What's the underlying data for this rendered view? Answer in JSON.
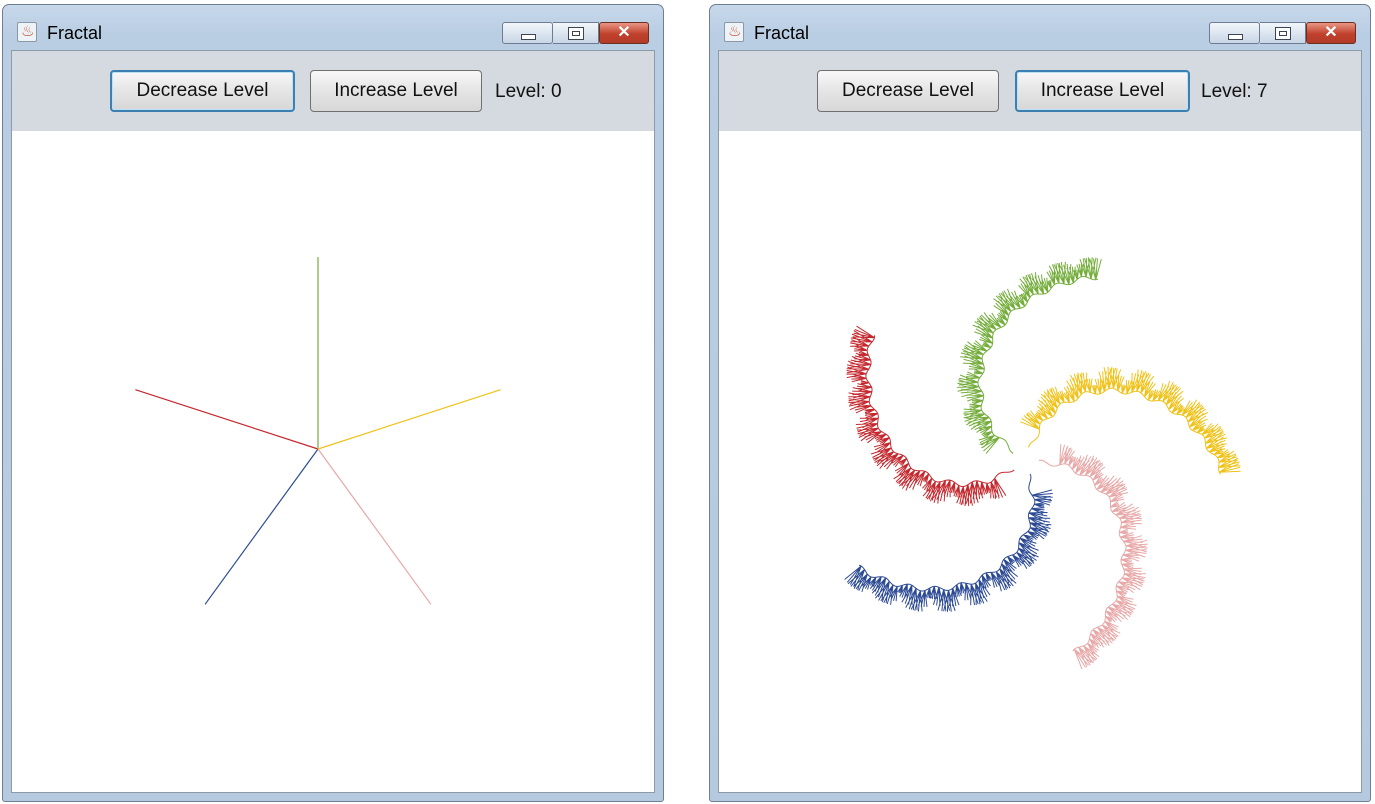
{
  "windows": [
    {
      "title": "Fractal",
      "decrease_label": "Decrease Level",
      "increase_label": "Increase Level",
      "level_text": "Level: 0",
      "level": 0,
      "focused_button": "decrease"
    },
    {
      "title": "Fractal",
      "decrease_label": "Decrease Level",
      "increase_label": "Increase Level",
      "level_text": "Level: 7",
      "level": 7,
      "focused_button": "increase"
    }
  ],
  "icons": {
    "app": "java-cup-icon",
    "minimize": "minimize-icon",
    "maximize": "maximize-icon",
    "close": "close-icon"
  },
  "colors": {
    "branches": [
      "#2c4a94",
      "#c4282e",
      "#74ad3c",
      "#f0c219",
      "#e8a8a8"
    ]
  }
}
